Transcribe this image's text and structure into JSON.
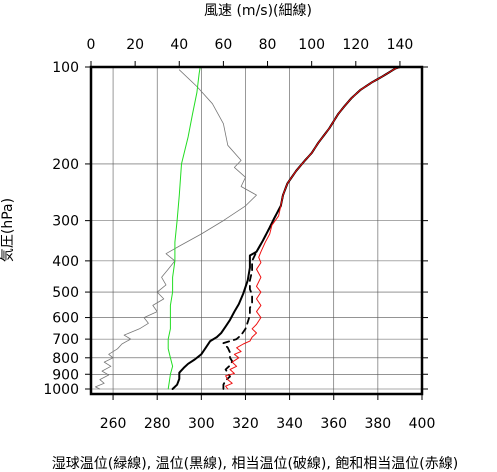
{
  "chart_data": {
    "type": "line",
    "title": "",
    "top_axis": {
      "label": "風速 (m/s)(細線)",
      "range": [
        0,
        150
      ],
      "ticks": [
        0,
        20,
        40,
        60,
        80,
        100,
        120,
        140
      ]
    },
    "bottom_axis": {
      "label": "湿球温位(緑線), 温位(黒線), 相当温位(破線), 飽和相当温位(赤線)",
      "range": [
        250,
        400
      ],
      "ticks": [
        260,
        280,
        300,
        320,
        340,
        360,
        380,
        400
      ]
    },
    "y_axis": {
      "label": "気圧(hPa)",
      "scale": "log",
      "range": [
        1025,
        100
      ],
      "ticks": [
        100,
        200,
        300,
        400,
        500,
        600,
        700,
        800,
        900,
        1000
      ]
    },
    "grid": true,
    "series": [
      {
        "id": "wind_speed",
        "axis": "top",
        "color": "#777777",
        "dash": "",
        "width": 0.8,
        "points": [
          [
            4,
            1000
          ],
          [
            2,
            985
          ],
          [
            6,
            960
          ],
          [
            4,
            935
          ],
          [
            8,
            905
          ],
          [
            5,
            880
          ],
          [
            9,
            850
          ],
          [
            6,
            825
          ],
          [
            10,
            800
          ],
          [
            8,
            780
          ],
          [
            12,
            750
          ],
          [
            14,
            725
          ],
          [
            18,
            700
          ],
          [
            15,
            680
          ],
          [
            22,
            650
          ],
          [
            26,
            625
          ],
          [
            24,
            600
          ],
          [
            30,
            575
          ],
          [
            28,
            550
          ],
          [
            33,
            525
          ],
          [
            30,
            500
          ],
          [
            34,
            475
          ],
          [
            32,
            450
          ],
          [
            35,
            425
          ],
          [
            38,
            400
          ],
          [
            34,
            380
          ],
          [
            40,
            360
          ],
          [
            50,
            330
          ],
          [
            60,
            300
          ],
          [
            70,
            270
          ],
          [
            75,
            250
          ],
          [
            68,
            235
          ],
          [
            70,
            220
          ],
          [
            65,
            205
          ],
          [
            68,
            195
          ],
          [
            62,
            175
          ],
          [
            60,
            150
          ],
          [
            55,
            130
          ],
          [
            48,
            115
          ],
          [
            40,
            102
          ]
        ]
      },
      {
        "id": "wet_bulb_potential_temperature",
        "axis": "bottom",
        "color": "#22dd22",
        "dash": "",
        "width": 1,
        "points": [
          [
            285,
            1000
          ],
          [
            285.5,
            950
          ],
          [
            286,
            900
          ],
          [
            287,
            850
          ],
          [
            286,
            800
          ],
          [
            285,
            750
          ],
          [
            285,
            700
          ],
          [
            286,
            650
          ],
          [
            286,
            600
          ],
          [
            286,
            550
          ],
          [
            287,
            500
          ],
          [
            287,
            450
          ],
          [
            288,
            400
          ],
          [
            288,
            350
          ],
          [
            289,
            300
          ],
          [
            290,
            250
          ],
          [
            291,
            200
          ],
          [
            294,
            165
          ],
          [
            296,
            140
          ],
          [
            298,
            120
          ],
          [
            299,
            105
          ],
          [
            299.5,
            100
          ]
        ]
      },
      {
        "id": "potential_temperature",
        "axis": "bottom",
        "color": "#000000",
        "dash": "",
        "width": 2,
        "points": [
          [
            287,
            1000
          ],
          [
            289,
            970
          ],
          [
            290,
            930
          ],
          [
            290,
            890
          ],
          [
            292,
            860
          ],
          [
            294,
            835
          ],
          [
            297,
            810
          ],
          [
            300,
            780
          ],
          [
            302,
            745
          ],
          [
            304,
            710
          ],
          [
            307,
            690
          ],
          [
            309,
            670
          ],
          [
            311,
            640
          ],
          [
            313,
            610
          ],
          [
            315,
            575
          ],
          [
            317,
            545
          ],
          [
            319,
            505
          ],
          [
            321,
            460
          ],
          [
            322,
            420
          ],
          [
            322,
            385
          ],
          [
            325,
            375
          ],
          [
            328,
            345
          ],
          [
            331,
            315
          ],
          [
            333,
            295
          ],
          [
            336,
            270
          ],
          [
            337,
            250
          ],
          [
            339,
            230
          ],
          [
            343,
            210
          ],
          [
            347,
            195
          ],
          [
            350,
            185
          ],
          [
            353,
            172
          ],
          [
            355,
            165
          ],
          [
            358,
            155
          ],
          [
            362,
            140
          ],
          [
            365,
            132
          ],
          [
            368,
            125
          ],
          [
            372,
            118
          ],
          [
            377,
            112
          ],
          [
            382,
            107
          ],
          [
            385,
            104
          ],
          [
            388,
            101
          ],
          [
            390,
            100
          ]
        ]
      },
      {
        "id": "equivalent_potential_temperature",
        "axis": "bottom",
        "color": "#000000",
        "dash": "6,5",
        "width": 1.8,
        "points": [
          [
            310,
            1000
          ],
          [
            310,
            970
          ],
          [
            311,
            940
          ],
          [
            313,
            915
          ],
          [
            312,
            890
          ],
          [
            311,
            870
          ],
          [
            313,
            845
          ],
          [
            314,
            820
          ],
          [
            313,
            800
          ],
          [
            313,
            770
          ],
          [
            312,
            745
          ],
          [
            310,
            720
          ],
          [
            316,
            700
          ],
          [
            318,
            680
          ],
          [
            320,
            650
          ],
          [
            321,
            620
          ],
          [
            322,
            590
          ],
          [
            322,
            560
          ],
          [
            323,
            540
          ],
          [
            323,
            510
          ],
          [
            322,
            490
          ],
          [
            322,
            460
          ],
          [
            323,
            430
          ],
          [
            323,
            400
          ],
          [
            325,
            375
          ],
          [
            328,
            345
          ],
          [
            331,
            315
          ],
          [
            333,
            295
          ],
          [
            336,
            270
          ],
          [
            337,
            250
          ],
          [
            339,
            230
          ],
          [
            343,
            210
          ],
          [
            347,
            195
          ],
          [
            350,
            185
          ],
          [
            353,
            172
          ],
          [
            355,
            165
          ],
          [
            358,
            155
          ],
          [
            362,
            140
          ],
          [
            365,
            132
          ],
          [
            368,
            125
          ],
          [
            372,
            118
          ],
          [
            377,
            112
          ],
          [
            382,
            107
          ],
          [
            385,
            104
          ],
          [
            388,
            101
          ],
          [
            390,
            100
          ]
        ]
      },
      {
        "id": "saturated_equivalent_potential_temperature",
        "axis": "bottom",
        "color": "#ee1111",
        "dash": "",
        "width": 1,
        "points": [
          [
            312,
            1000
          ],
          [
            311,
            980
          ],
          [
            314,
            960
          ],
          [
            312,
            935
          ],
          [
            311,
            910
          ],
          [
            315,
            895
          ],
          [
            313,
            870
          ],
          [
            316,
            850
          ],
          [
            314,
            825
          ],
          [
            317,
            800
          ],
          [
            315,
            780
          ],
          [
            318,
            765
          ],
          [
            316,
            745
          ],
          [
            319,
            725
          ],
          [
            322,
            710
          ],
          [
            323,
            690
          ],
          [
            325,
            670
          ],
          [
            323,
            650
          ],
          [
            325,
            630
          ],
          [
            327,
            600
          ],
          [
            325,
            575
          ],
          [
            327,
            550
          ],
          [
            325,
            525
          ],
          [
            327,
            500
          ],
          [
            325,
            480
          ],
          [
            327,
            450
          ],
          [
            325,
            425
          ],
          [
            327,
            405
          ],
          [
            326,
            390
          ],
          [
            327,
            375
          ],
          [
            329,
            350
          ],
          [
            331,
            330
          ],
          [
            332,
            310
          ],
          [
            335,
            290
          ],
          [
            336,
            270
          ],
          [
            337,
            250
          ],
          [
            339,
            230
          ],
          [
            343,
            210
          ],
          [
            347,
            195
          ],
          [
            350,
            185
          ],
          [
            353,
            172
          ],
          [
            355,
            165
          ],
          [
            358,
            155
          ],
          [
            362,
            140
          ],
          [
            365,
            132
          ],
          [
            368,
            125
          ],
          [
            372,
            118
          ],
          [
            377,
            112
          ],
          [
            382,
            107
          ],
          [
            385,
            104
          ],
          [
            388,
            101
          ],
          [
            391,
            100
          ]
        ]
      }
    ]
  }
}
